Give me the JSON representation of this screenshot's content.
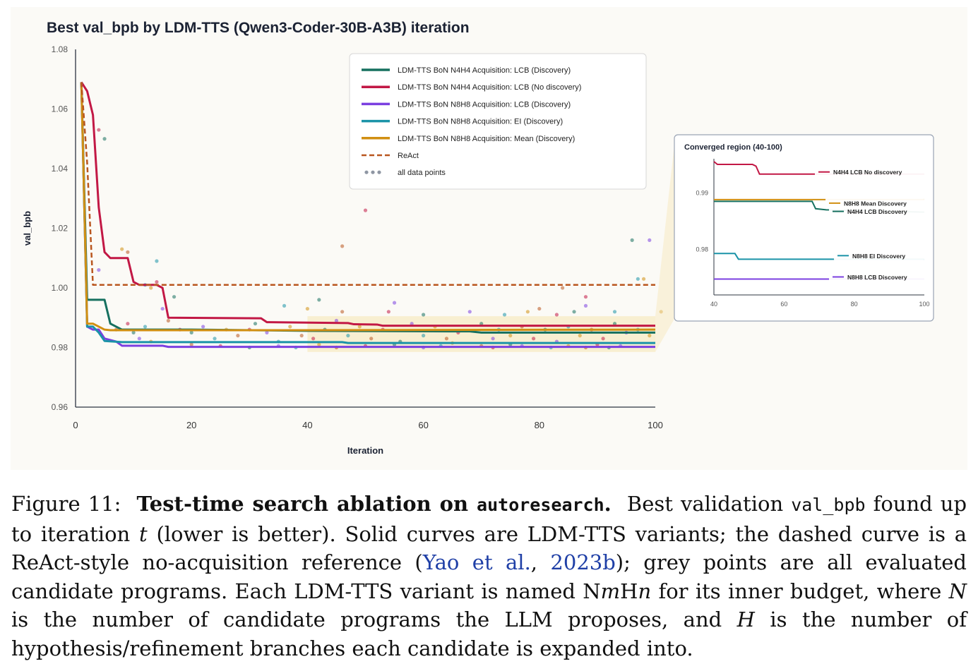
{
  "chart_data": [
    {
      "type": "line",
      "title": "Best val_bpb by LDM-TTS (Qwen3-Coder-30B-A3B) iteration",
      "xlabel": "Iteration",
      "ylabel": "val_bpb",
      "xlim": [
        0,
        100
      ],
      "ylim": [
        0.96,
        1.08
      ],
      "xticks": [
        0,
        20,
        40,
        60,
        80,
        100
      ],
      "yticks": [
        0.96,
        0.98,
        1.0,
        1.02,
        1.04,
        1.06,
        1.08
      ],
      "ytick_labels": [
        "0.96",
        "0.98",
        "1.00",
        "1.02",
        "1.04",
        "1.06",
        "1.08"
      ],
      "legend_position": "top-right",
      "grid": false,
      "series": [
        {
          "name": "LDM-TTS BoN N4H4 Acquisition: LCB (Discovery)",
          "color": "#16705f",
          "dash": false,
          "points": [
            [
              1,
              1.069
            ],
            [
              2,
              0.996
            ],
            [
              3,
              0.996
            ],
            [
              4,
              0.996
            ],
            [
              5,
              0.996
            ],
            [
              6,
              0.988
            ],
            [
              7,
              0.987
            ],
            [
              8,
              0.986
            ],
            [
              10,
              0.986
            ],
            [
              20,
              0.986
            ],
            [
              40,
              0.9856
            ],
            [
              68,
              0.9854
            ],
            [
              69,
              0.9852
            ],
            [
              70,
              0.985
            ],
            [
              100,
              0.985
            ]
          ]
        },
        {
          "name": "LDM-TTS BoN N4H4 Acquisition: LCB (No discovery)",
          "color": "#c21845",
          "dash": false,
          "points": [
            [
              1,
              1.069
            ],
            [
              2,
              1.066
            ],
            [
              3,
              1.058
            ],
            [
              4,
              1.027
            ],
            [
              5,
              1.012
            ],
            [
              6,
              1.01
            ],
            [
              9,
              1.01
            ],
            [
              10,
              1.002
            ],
            [
              11,
              1.001
            ],
            [
              14,
              1.001
            ],
            [
              15,
              1.0
            ],
            [
              16,
              0.99
            ],
            [
              32,
              0.9898
            ],
            [
              33,
              0.9885
            ],
            [
              47,
              0.9882
            ],
            [
              48,
              0.9878
            ],
            [
              52,
              0.9877
            ],
            [
              53,
              0.9873
            ],
            [
              100,
              0.9873
            ]
          ]
        },
        {
          "name": "LDM-TTS BoN N8H8 Acquisition: LCB (Discovery)",
          "color": "#7b3fe0",
          "dash": false,
          "points": [
            [
              1,
              1.069
            ],
            [
              2,
              0.987
            ],
            [
              3,
              0.986
            ],
            [
              4,
              0.986
            ],
            [
              5,
              0.983
            ],
            [
              7,
              0.982
            ],
            [
              8,
              0.9806
            ],
            [
              15,
              0.9806
            ],
            [
              16,
              0.9802
            ],
            [
              100,
              0.9802
            ]
          ]
        },
        {
          "name": "LDM-TTS BoN N8H8 Acquisition: EI (Discovery)",
          "color": "#1b93a8",
          "dash": false,
          "points": [
            [
              1,
              1.069
            ],
            [
              2,
              0.987
            ],
            [
              3,
              0.987
            ],
            [
              4,
              0.985
            ],
            [
              5,
              0.9822
            ],
            [
              8,
              0.9818
            ],
            [
              46,
              0.9818
            ],
            [
              47,
              0.9815
            ],
            [
              100,
              0.9815
            ]
          ]
        },
        {
          "name": "LDM-TTS BoN N8H8 Acquisition: Mean (Discovery)",
          "color": "#d18f12",
          "dash": false,
          "points": [
            [
              1,
              1.069
            ],
            [
              2,
              0.988
            ],
            [
              3,
              0.988
            ],
            [
              4,
              0.987
            ],
            [
              5,
              0.986
            ],
            [
              6,
              0.9858
            ],
            [
              20,
              0.9858
            ],
            [
              40,
              0.9858
            ],
            [
              100,
              0.986
            ]
          ]
        },
        {
          "name": "ReAct",
          "color": "#b9561f",
          "dash": true,
          "points": [
            [
              1,
              1.069
            ],
            [
              2,
              1.042
            ],
            [
              3,
              1.001
            ],
            [
              100,
              1.001
            ]
          ]
        }
      ],
      "scatter": {
        "name": "all data points",
        "colors": [
          "#c21845",
          "#16705f",
          "#7b3fe0",
          "#1b93a8",
          "#d18f12",
          "#b9561f"
        ],
        "points": [
          [
            4,
            1.053
          ],
          [
            5,
            1.05
          ],
          [
            4,
            1.006
          ],
          [
            14,
            1.009
          ],
          [
            8,
            1.013
          ],
          [
            9,
            1.012
          ],
          [
            14,
            1.002
          ],
          [
            17,
            0.997
          ],
          [
            15,
            0.993
          ],
          [
            12,
            1.001
          ],
          [
            13,
            1.0
          ],
          [
            46,
            1.014
          ],
          [
            50,
            1.026
          ],
          [
            96,
            1.016
          ],
          [
            99,
            1.016
          ],
          [
            97,
            1.003
          ],
          [
            98,
            1.003
          ],
          [
            84,
            1.0
          ],
          [
            88,
            0.997
          ],
          [
            42,
            0.996
          ],
          [
            55,
            0.995
          ],
          [
            36,
            0.994
          ],
          [
            40,
            0.993
          ],
          [
            46,
            0.992
          ],
          [
            54,
            0.992
          ],
          [
            60,
            0.991
          ],
          [
            68,
            0.992
          ],
          [
            74,
            0.991
          ],
          [
            78,
            0.992
          ],
          [
            80,
            0.993
          ],
          [
            83,
            0.991
          ],
          [
            86,
            0.992
          ],
          [
            88,
            0.994
          ],
          [
            93,
            0.992
          ],
          [
            101,
            0.992
          ],
          [
            7,
            0.986
          ],
          [
            9,
            0.988
          ],
          [
            10,
            0.985
          ],
          [
            11,
            0.983
          ],
          [
            12,
            0.987
          ],
          [
            13,
            0.982
          ],
          [
            16,
            0.989
          ],
          [
            18,
            0.986
          ],
          [
            20,
            0.985
          ],
          [
            22,
            0.987
          ],
          [
            24,
            0.983
          ],
          [
            26,
            0.986
          ],
          [
            28,
            0.984
          ],
          [
            30,
            0.986
          ],
          [
            31,
            0.988
          ],
          [
            33,
            0.985
          ],
          [
            35,
            0.982
          ],
          [
            37,
            0.987
          ],
          [
            39,
            0.984
          ],
          [
            41,
            0.983
          ],
          [
            43,
            0.986
          ],
          [
            45,
            0.989
          ],
          [
            47,
            0.984
          ],
          [
            49,
            0.987
          ],
          [
            51,
            0.983
          ],
          [
            53,
            0.986
          ],
          [
            56,
            0.982
          ],
          [
            58,
            0.988
          ],
          [
            60,
            0.984
          ],
          [
            62,
            0.987
          ],
          [
            64,
            0.983
          ],
          [
            66,
            0.985
          ],
          [
            70,
            0.988
          ],
          [
            72,
            0.983
          ],
          [
            73,
            0.986
          ],
          [
            75,
            0.984
          ],
          [
            77,
            0.987
          ],
          [
            79,
            0.983
          ],
          [
            81,
            0.986
          ],
          [
            83,
            0.982
          ],
          [
            85,
            0.987
          ],
          [
            87,
            0.984
          ],
          [
            89,
            0.986
          ],
          [
            91,
            0.983
          ],
          [
            93,
            0.988
          ],
          [
            95,
            0.985
          ],
          [
            97,
            0.986
          ],
          [
            99,
            0.984
          ],
          [
            20,
            0.981
          ],
          [
            25,
            0.9805
          ],
          [
            30,
            0.98
          ],
          [
            35,
            0.9805
          ],
          [
            38,
            0.98
          ],
          [
            42,
            0.981
          ],
          [
            45,
            0.98
          ],
          [
            50,
            0.9805
          ],
          [
            55,
            0.981
          ],
          [
            60,
            0.98
          ],
          [
            63,
            0.9805
          ],
          [
            65,
            0.9815
          ],
          [
            70,
            0.9805
          ],
          [
            72,
            0.98
          ],
          [
            75,
            0.981
          ],
          [
            77,
            0.9805
          ],
          [
            82,
            0.98
          ],
          [
            85,
            0.9805
          ],
          [
            88,
            0.98
          ],
          [
            90,
            0.981
          ],
          [
            92,
            0.98
          ],
          [
            94,
            0.9805
          ]
        ]
      }
    },
    {
      "type": "line",
      "title": "Converged region (40-100)",
      "xlim": [
        40,
        100
      ],
      "ylim": [
        0.972,
        0.996
      ],
      "xticks": [
        40,
        60,
        80,
        100
      ],
      "yticks": [
        0.98,
        0.99
      ],
      "ytick_labels": [
        "0.98",
        "0.99"
      ],
      "series": [
        {
          "name": "N4H4 LCB No discovery",
          "color": "#c21845",
          "points": [
            [
              40,
              0.9955
            ],
            [
              41,
              0.995
            ],
            [
              51,
              0.995
            ],
            [
              52,
              0.9947
            ],
            [
              53,
              0.9933
            ],
            [
              100,
              0.9933
            ]
          ]
        },
        {
          "name": "N8H8 Mean Discovery",
          "color": "#d18f12",
          "points": [
            [
              40,
              0.9888
            ],
            [
              100,
              0.9888
            ]
          ]
        },
        {
          "name": "N4H4 LCB Discovery",
          "color": "#16705f",
          "points": [
            [
              40,
              0.9885
            ],
            [
              68,
              0.9885
            ],
            [
              69,
              0.9872
            ],
            [
              72,
              0.987
            ],
            [
              100,
              0.9866
            ]
          ]
        },
        {
          "name": "N8H8 EI Discovery",
          "color": "#1b93a8",
          "points": [
            [
              40,
              0.9793
            ],
            [
              46,
              0.9793
            ],
            [
              47,
              0.9783
            ],
            [
              100,
              0.9783
            ]
          ]
        },
        {
          "name": "N8H8 LCB Discovery",
          "color": "#7b3fe0",
          "points": [
            [
              40,
              0.9748
            ],
            [
              100,
              0.9748
            ]
          ]
        }
      ]
    }
  ],
  "caption": {
    "figure_label": "Figure 11:",
    "bold_title_pre": "Test-time search ablation on",
    "bold_title_code": "autoresearch",
    "bold_title_end": ".",
    "sentence1_pre": "Best validation",
    "code_val_bpb": "val_bpb",
    "sentence1_post": "found up to iteration",
    "var_t": "t",
    "sentence1_end": "(lower is better). Solid curves are LDM-TTS variants; the dashed curve is a ReAct-style no-acquisition reference (",
    "cite_author": "Yao et al.",
    "cite_sep": ", ",
    "cite_year": "2023b",
    "sentence2": "); grey points are all evaluated candidate programs. Each LDM-TTS variant is named N",
    "var_m": "m",
    "name_h": "H",
    "var_n": "n",
    "sentence3": "for its inner budget, where",
    "var_N": "N",
    "sentence4": "is the number of candidate programs the LLM proposes, and",
    "var_H": "H",
    "sentence5": "is the number of hypothesis/refinement branches each candidate is expanded into."
  }
}
